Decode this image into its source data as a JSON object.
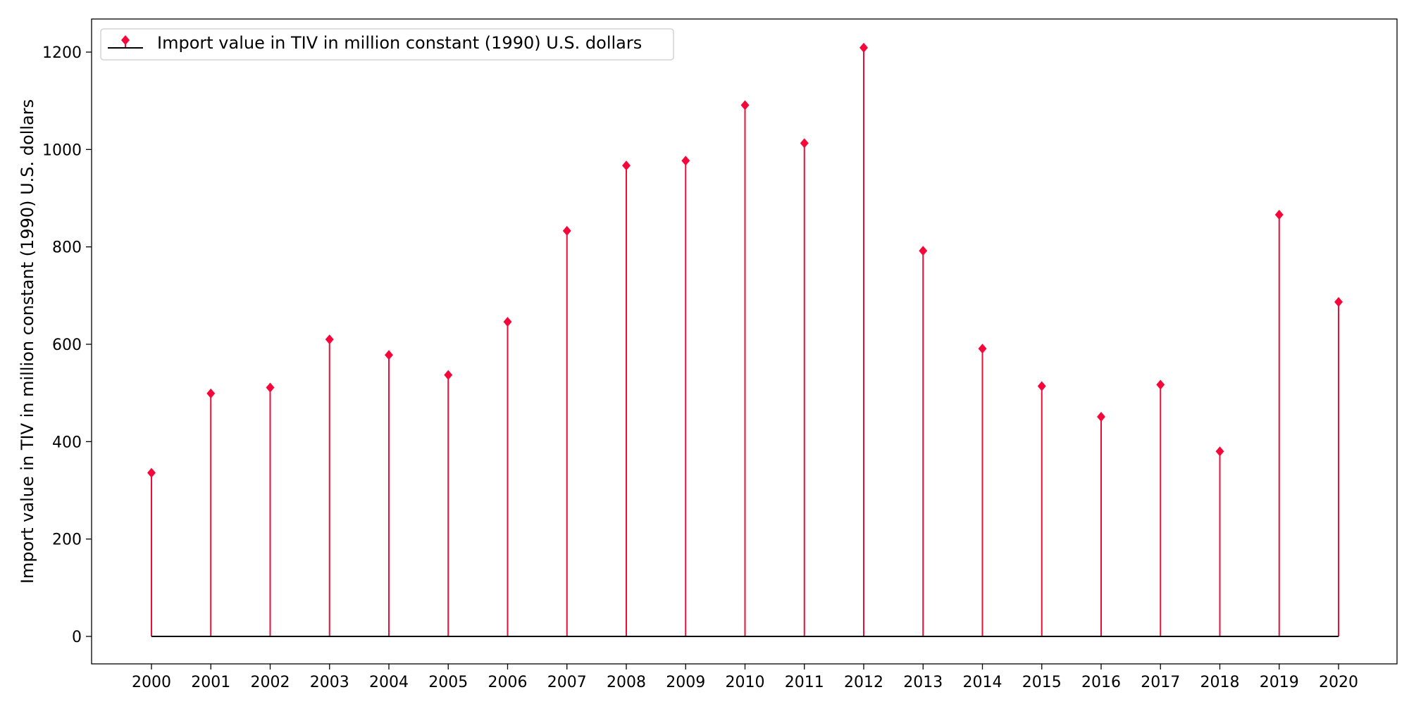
{
  "chart_data": {
    "type": "stem",
    "title": "",
    "xlabel": "",
    "ylabel": "Import value in TIV in million constant (1990) U.S. dollars",
    "categories": [
      "2000",
      "2001",
      "2002",
      "2003",
      "2004",
      "2005",
      "2006",
      "2007",
      "2008",
      "2009",
      "2010",
      "2011",
      "2012",
      "2013",
      "2014",
      "2015",
      "2016",
      "2017",
      "2018",
      "2019",
      "2020"
    ],
    "series": [
      {
        "name": "Import value in TIV in million constant (1990) U.S. dollars",
        "values": [
          336,
          499,
          511,
          610,
          578,
          537,
          646,
          833,
          967,
          977,
          1091,
          1013,
          1209,
          792,
          591,
          514,
          451,
          517,
          380,
          866,
          687
        ]
      }
    ],
    "ylim": [
      -60,
      1265
    ],
    "yticks": [
      0,
      200,
      400,
      600,
      800,
      1000,
      1200
    ],
    "grid": false,
    "legend_position": "top-left",
    "colors": {
      "stem": "#e8103a",
      "marker": "#f5073a",
      "baseline": "#000000"
    }
  }
}
